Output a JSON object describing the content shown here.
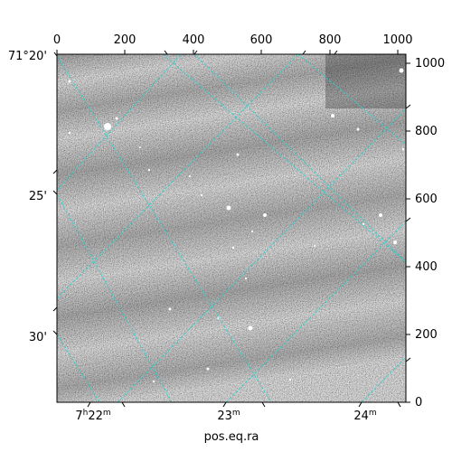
{
  "figure": {
    "pixel_axis_x_ticks": [
      "0",
      "200",
      "400",
      "600",
      "800",
      "1000"
    ],
    "pixel_axis_y_ticks": [
      "0",
      "200",
      "400",
      "600",
      "800",
      "1000"
    ],
    "dec_ticks": [
      "71°20'",
      "25'",
      "30'"
    ],
    "ra_ticks": [
      {
        "h": "7",
        "m": "22"
      },
      {
        "m": "23"
      },
      {
        "m": "24"
      }
    ],
    "ra_axis_label": "pos.eq.ra"
  },
  "colors": {
    "grid": "#22d3cf",
    "frame": "#000000"
  }
}
